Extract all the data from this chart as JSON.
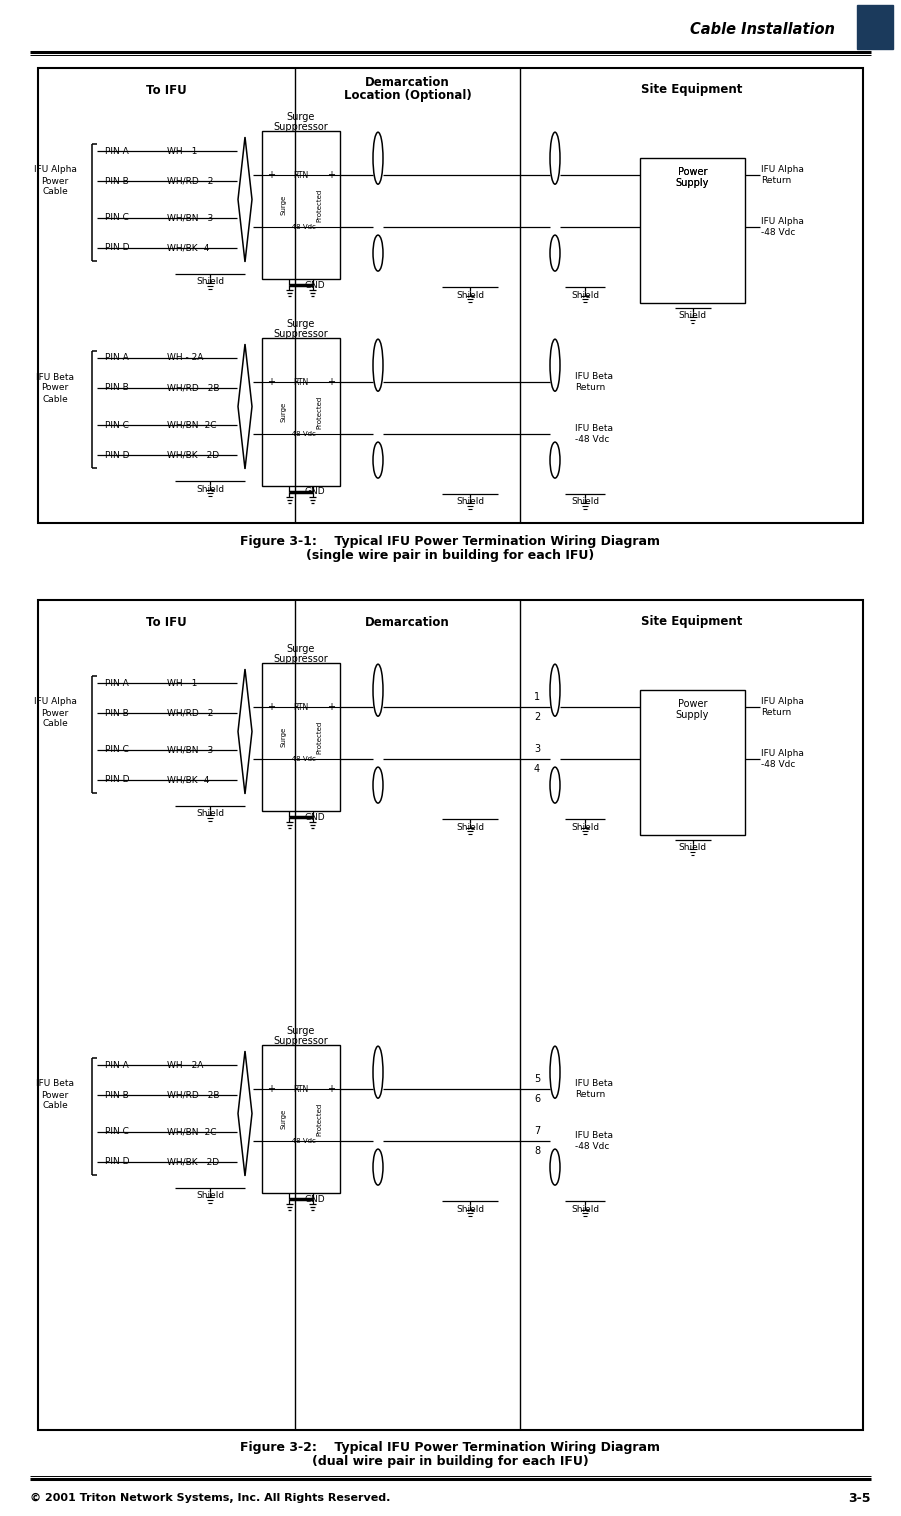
{
  "page_title": "Cable Installation",
  "footer_left": "© 2001 Triton Network Systems, Inc. All Rights Reserved.",
  "footer_right": "3-5",
  "fig1_caption_line1": "Figure 3-1:    Typical IFU Power Termination Wiring Diagram",
  "fig1_caption_line2": "(single wire pair in building for each IFU)",
  "fig2_caption_line1": "Figure 3-2:    Typical IFU Power Termination Wiring Diagram",
  "fig2_caption_line2": "(dual wire pair in building for each IFU)",
  "pins": [
    "PIN A",
    "PIN B",
    "PIN C",
    "PIN D"
  ],
  "wires_alpha": [
    "WH - 1",
    "WH/RD - 2",
    "WH/BN - 3",
    "WH/BK -4"
  ],
  "wires_beta": [
    "WH - 2A",
    "WH/RD - 2B",
    "WH/BN -2C",
    "WH/BK - 2D"
  ],
  "bg_color": "#ffffff"
}
